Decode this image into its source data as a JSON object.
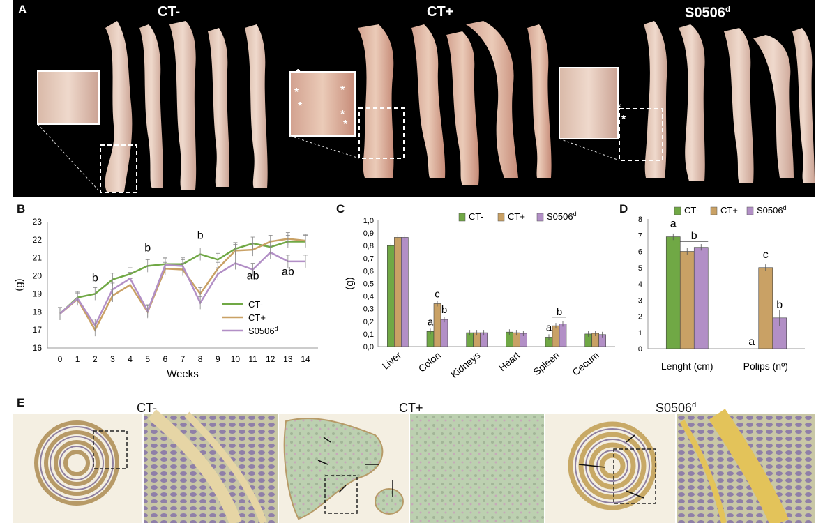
{
  "figure": {
    "panel_labels": [
      "A",
      "B",
      "C",
      "D",
      "E"
    ],
    "colors": {
      "ct_minus": "#70a845",
      "ct_plus": "#c9a165",
      "s0506": "#b28fc6"
    }
  },
  "panel_a": {
    "groups": [
      "CT-",
      "CT+",
      "S0506"
    ],
    "superscript": "d",
    "star": "*"
  },
  "panel_b": {
    "chart_data": {
      "type": "line",
      "xlabel": "Weeks",
      "ylabel": "(g)",
      "ylim": [
        16,
        23
      ],
      "x": [
        0,
        1,
        2,
        3,
        4,
        5,
        6,
        7,
        8,
        9,
        10,
        11,
        12,
        13,
        14
      ],
      "series": [
        {
          "name": "CT-",
          "values": [
            17.9,
            18.8,
            19.0,
            19.8,
            20.1,
            20.55,
            20.65,
            20.65,
            21.2,
            20.9,
            21.5,
            21.8,
            21.6,
            21.9,
            21.9
          ]
        },
        {
          "name": "CT+",
          "values": [
            17.9,
            18.7,
            17.0,
            18.9,
            19.5,
            18.0,
            20.4,
            20.35,
            19.0,
            20.4,
            21.4,
            21.45,
            21.9,
            22.05,
            21.95
          ]
        },
        {
          "name": "S0506d",
          "values": [
            17.9,
            18.75,
            17.25,
            19.25,
            19.85,
            18.05,
            20.6,
            20.55,
            18.5,
            20.1,
            20.7,
            20.35,
            21.3,
            20.8,
            20.8
          ]
        }
      ],
      "legend": [
        "CT-",
        "CT+",
        "S0506"
      ],
      "legend_sup": "d",
      "annotations": [
        {
          "x": 2,
          "text": "b",
          "y": 19.7
        },
        {
          "x": 5,
          "text": "b",
          "y": 21.35
        },
        {
          "x": 8,
          "text": "b",
          "y": 22.05
        },
        {
          "x": 11,
          "text": "ab",
          "y": 19.8
        },
        {
          "x": 13,
          "text": "ab",
          "y": 20.05
        }
      ],
      "yticks": [
        "16",
        "17",
        "18",
        "19",
        "20",
        "21",
        "22",
        "23"
      ],
      "xticks": [
        "0",
        "1",
        "2",
        "3",
        "4",
        "5",
        "6",
        "7",
        "8",
        "9",
        "10",
        "11",
        "12",
        "13",
        "14"
      ]
    }
  },
  "panel_c": {
    "chart_data": {
      "type": "bar",
      "ylabel": "(g)",
      "ylim": [
        0,
        1.0
      ],
      "categories": [
        "Liver",
        "Colon",
        "Kidneys",
        "Heart",
        "Spleen",
        "Cecum"
      ],
      "series": [
        {
          "name": "CT-",
          "values": [
            0.8,
            0.12,
            0.11,
            0.115,
            0.075,
            0.1
          ]
        },
        {
          "name": "CT+",
          "values": [
            0.865,
            0.34,
            0.11,
            0.11,
            0.165,
            0.105
          ]
        },
        {
          "name": "S0506d",
          "values": [
            0.865,
            0.215,
            0.11,
            0.105,
            0.18,
            0.095
          ]
        }
      ],
      "legend": [
        "CT-",
        "CT+",
        "S0506"
      ],
      "legend_sup": "d",
      "yticks": [
        "0,0",
        "0,1",
        "0,2",
        "0,3",
        "0,4",
        "0,5",
        "0,6",
        "0,7",
        "0,8",
        "0,9",
        "1,0"
      ],
      "annotations": [
        {
          "cat": 1,
          "series": 0,
          "text": "a"
        },
        {
          "cat": 1,
          "series": 1,
          "text": "c"
        },
        {
          "cat": 1,
          "series": 2,
          "text": "b"
        },
        {
          "cat": 4,
          "series": 0,
          "text": "a"
        },
        {
          "cat": 4,
          "series": 1,
          "text": "b",
          "bracket": true
        }
      ]
    }
  },
  "panel_d": {
    "chart_data": {
      "type": "bar",
      "ylim": [
        0,
        8
      ],
      "categories": [
        "Lenght (cm)",
        "Polips (nº)"
      ],
      "series": [
        {
          "name": "CT-",
          "values": [
            6.9,
            0
          ]
        },
        {
          "name": "CT+",
          "values": [
            6.0,
            5.0
          ]
        },
        {
          "name": "S0506d",
          "values": [
            6.25,
            1.9
          ]
        }
      ],
      "legend": [
        "CT-",
        "CT+",
        "S0506"
      ],
      "legend_sup": "d",
      "yticks": [
        "0",
        "1",
        "2",
        "3",
        "4",
        "5",
        "6",
        "7",
        "8"
      ],
      "annotations": [
        {
          "cat": 0,
          "series": 0,
          "text": "a"
        },
        {
          "cat": 0,
          "series": 1,
          "text": "b",
          "bracket": true
        },
        {
          "cat": 1,
          "series": 0,
          "text": "a"
        },
        {
          "cat": 1,
          "series": 1,
          "text": "c"
        },
        {
          "cat": 1,
          "series": 2,
          "text": "b"
        }
      ]
    }
  },
  "panel_e": {
    "titles": [
      "CT-",
      "CT+",
      "S0506"
    ],
    "superscript": "d"
  }
}
